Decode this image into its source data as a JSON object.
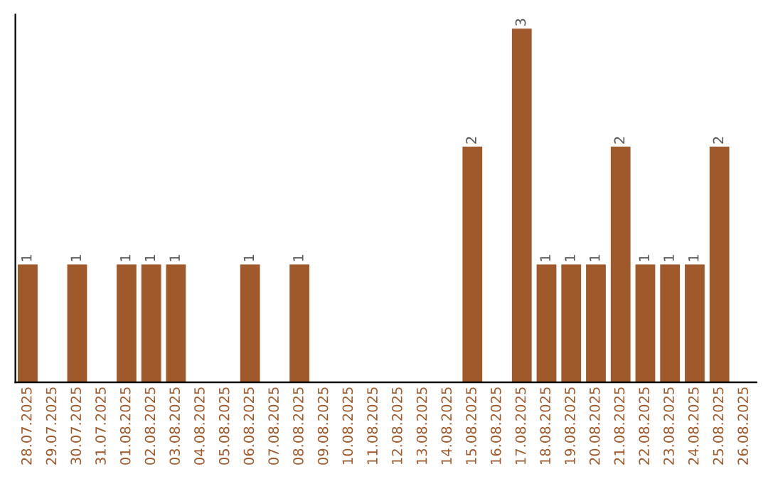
{
  "chart_data": {
    "type": "bar",
    "categories": [
      "28.07.2025",
      "29.07.2025",
      "30.07.2025",
      "31.07.2025",
      "01.08.2025",
      "02.08.2025",
      "03.08.2025",
      "04.08.2025",
      "05.08.2025",
      "06.08.2025",
      "07.08.2025",
      "08.08.2025",
      "09.08.2025",
      "10.08.2025",
      "11.08.2025",
      "12.08.2025",
      "13.08.2025",
      "14.08.2025",
      "15.08.2025",
      "16.08.2025",
      "17.08.2025",
      "18.08.2025",
      "19.08.2025",
      "20.08.2025",
      "21.08.2025",
      "22.08.2025",
      "23.08.2025",
      "24.08.2025",
      "25.08.2025",
      "26.08.2025"
    ],
    "values": [
      1,
      0,
      1,
      0,
      1,
      1,
      1,
      0,
      0,
      1,
      0,
      1,
      0,
      0,
      0,
      0,
      0,
      0,
      2,
      0,
      3,
      1,
      1,
      1,
      2,
      1,
      1,
      1,
      2,
      0
    ],
    "value_labels": [
      "1",
      null,
      "1",
      null,
      "1",
      "1",
      "1",
      null,
      null,
      "1",
      null,
      "1",
      null,
      null,
      null,
      null,
      null,
      null,
      "2",
      null,
      "3",
      "1",
      "1",
      "1",
      "2",
      "1",
      "1",
      "1",
      "2",
      null
    ],
    "color": "#a0592a",
    "grid": false,
    "legend": false
  }
}
